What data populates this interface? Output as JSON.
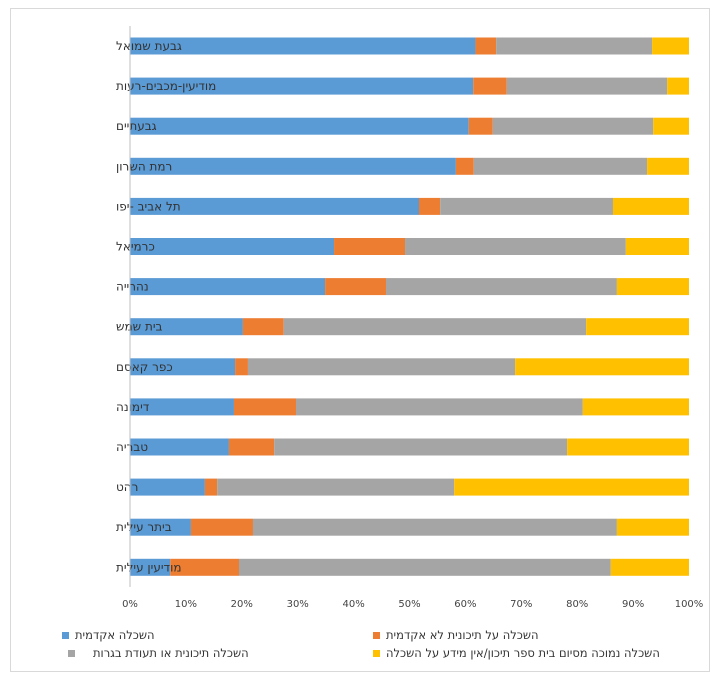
{
  "chart_data": {
    "type": "bar",
    "orientation": "horizontal",
    "stacked": "percent",
    "title": "",
    "xlabel": "",
    "ylabel": "",
    "xlim": [
      0,
      100
    ],
    "x_ticks": [
      "0%",
      "10%",
      "20%",
      "30%",
      "40%",
      "50%",
      "60%",
      "70%",
      "80%",
      "90%",
      "100%"
    ],
    "grid": false,
    "legend_position": "bottom",
    "categories": [
      "גבעת שמואל",
      "מודיעין-מכבים-רעות",
      "גבעתיים",
      "רמת השרון",
      "תל אביב -יפו",
      "כרמיאל",
      "נהרייה",
      "בית שמש",
      "כפר קאסם",
      "דימונה",
      "טבריה",
      "רהט",
      "ביתר עילית",
      "מודיעין  עילית"
    ],
    "series": [
      {
        "name": "השכלה אקדמית",
        "color": "#5B9BD5",
        "values": [
          61.8,
          61.4,
          60.6,
          58.3,
          51.7,
          36.5,
          34.9,
          20.2,
          18.8,
          18.6,
          17.7,
          13.4,
          10.9,
          7.2
        ]
      },
      {
        "name": "השכלה על תיכונית לא אקדמית",
        "color": "#ED7D31",
        "values": [
          3.7,
          6.0,
          4.3,
          3.2,
          3.8,
          12.7,
          10.9,
          7.3,
          2.3,
          11.1,
          8.1,
          2.2,
          11.1,
          12.3
        ]
      },
      {
        "name": "השכלה תיכונית או תעודת בגרות",
        "color": "#A5A5A5",
        "values": [
          27.9,
          28.7,
          28.7,
          31.0,
          30.9,
          39.5,
          41.3,
          54.1,
          47.8,
          51.3,
          52.4,
          42.4,
          65.1,
          66.5
        ]
      },
      {
        "name": "השכלה נמוכה מסיום בית ספר תיכון/אין  מידע על השכלה",
        "color": "#FFC000",
        "values": [
          6.6,
          3.9,
          6.4,
          7.5,
          13.6,
          11.3,
          12.9,
          18.4,
          31.1,
          19.0,
          21.8,
          42.0,
          12.9,
          14.0
        ]
      }
    ]
  }
}
